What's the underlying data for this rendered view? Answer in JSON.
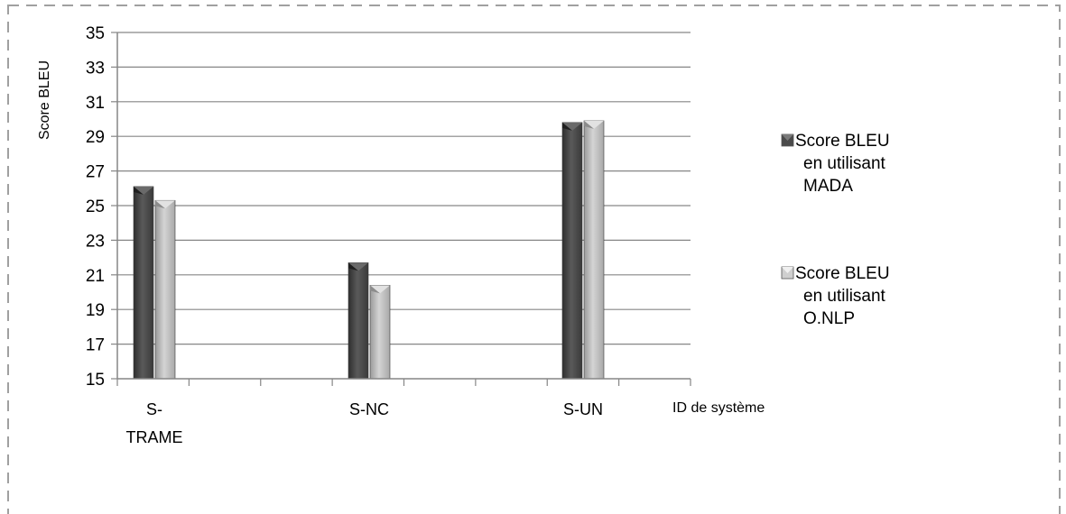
{
  "chart_data": {
    "type": "bar",
    "title": "",
    "xlabel": "ID de système",
    "ylabel": "Score BLEU",
    "ylim": [
      15,
      35
    ],
    "yticks": [
      15,
      17,
      19,
      21,
      23,
      25,
      27,
      29,
      31,
      33,
      35
    ],
    "grid": true,
    "legend_position": "right",
    "categories": [
      "S-TRAME",
      "S-NC",
      "S-UN"
    ],
    "category_label_lines": [
      [
        "S-",
        "TRAME"
      ],
      [
        "S-NC"
      ],
      [
        "S-UN"
      ]
    ],
    "series": [
      {
        "name": "Score BLEU en utilisant MADA",
        "legend_lines": [
          "Score BLEU",
          "en utilisant",
          "MADA"
        ],
        "color": "#4a4a4a",
        "values": [
          26.1,
          21.7,
          29.8
        ]
      },
      {
        "name": "Score BLEU en utilisant O.NLP",
        "legend_lines": [
          "Score BLEU",
          "en utilisant",
          "O.NLP"
        ],
        "color": "#b8b8b8",
        "values": [
          25.3,
          20.4,
          29.9
        ]
      }
    ]
  }
}
